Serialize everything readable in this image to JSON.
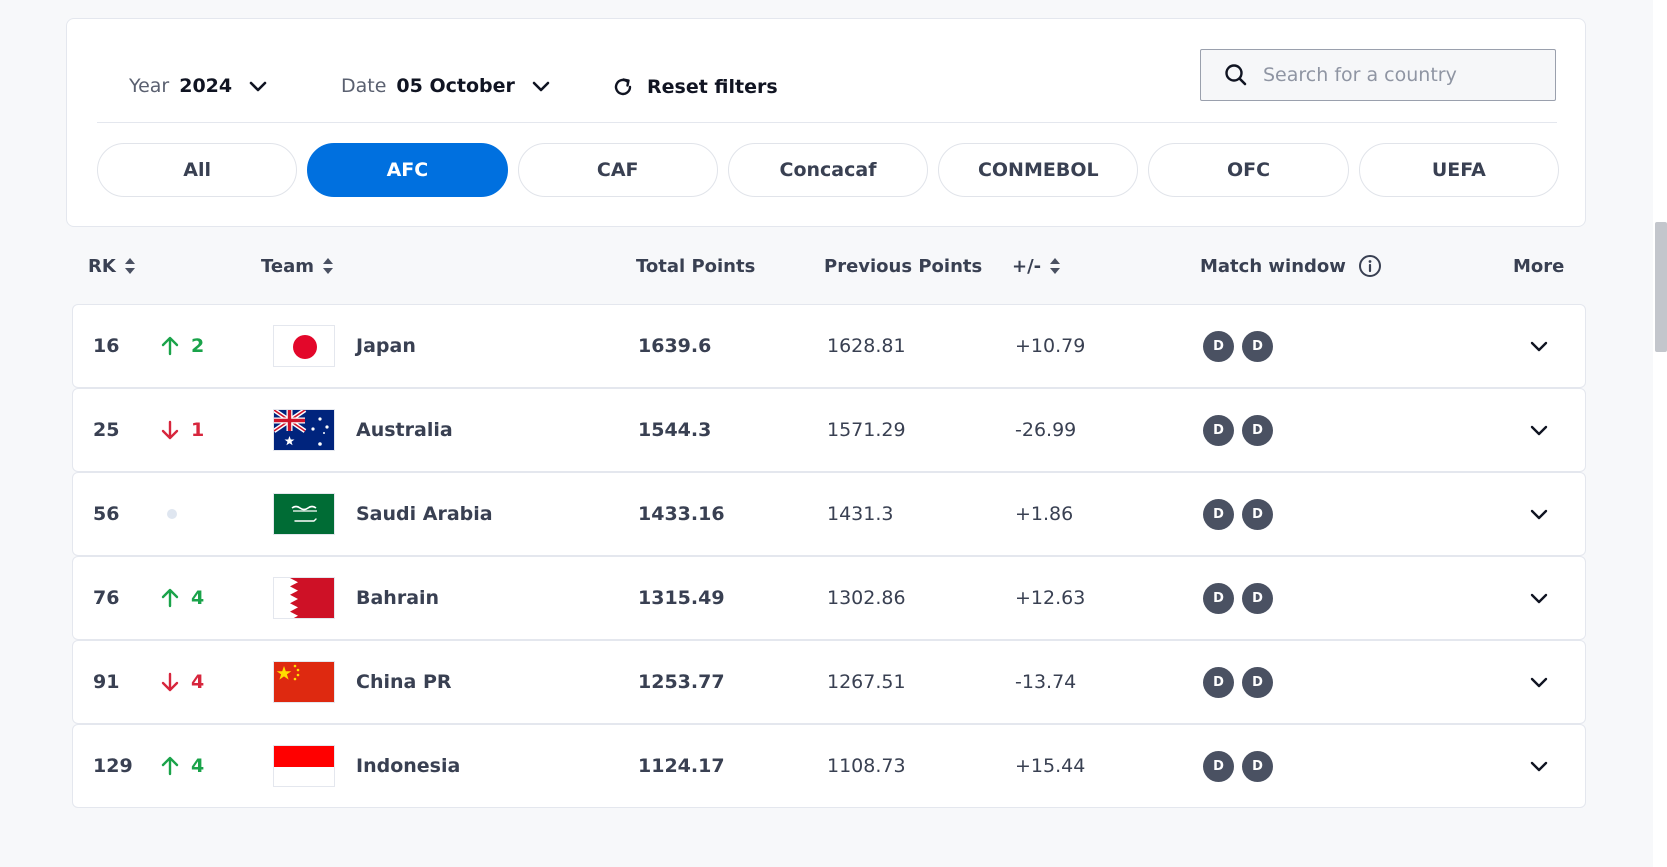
{
  "filters": {
    "year": {
      "label": "Year",
      "value": "2024"
    },
    "date": {
      "label": "Date",
      "value": "05 October"
    },
    "reset_label": "Reset filters",
    "search_placeholder": "Search for a country"
  },
  "tabs": [
    {
      "label": "All",
      "active": false
    },
    {
      "label": "AFC",
      "active": true
    },
    {
      "label": "CAF",
      "active": false
    },
    {
      "label": "Concacaf",
      "active": false
    },
    {
      "label": "CONMEBOL",
      "active": false
    },
    {
      "label": "OFC",
      "active": false
    },
    {
      "label": "UEFA",
      "active": false
    }
  ],
  "columns": {
    "rk": "RK",
    "team": "Team",
    "total_points": "Total Points",
    "previous_points": "Previous Points",
    "diff": "+/-",
    "match_window": "Match window",
    "more": "More"
  },
  "rows": [
    {
      "rank": "16",
      "movement": "up",
      "movement_value": "2",
      "flag": "japan",
      "team": "Japan",
      "total": "1639.6",
      "previous": "1628.81",
      "diff": "+10.79",
      "match_window": [
        "D",
        "D"
      ]
    },
    {
      "rank": "25",
      "movement": "down",
      "movement_value": "1",
      "flag": "australia",
      "team": "Australia",
      "total": "1544.3",
      "previous": "1571.29",
      "diff": "-26.99",
      "match_window": [
        "D",
        "D"
      ]
    },
    {
      "rank": "56",
      "movement": "none",
      "movement_value": "",
      "flag": "saudi-arabia",
      "team": "Saudi Arabia",
      "total": "1433.16",
      "previous": "1431.3",
      "diff": "+1.86",
      "match_window": [
        "D",
        "D"
      ]
    },
    {
      "rank": "76",
      "movement": "up",
      "movement_value": "4",
      "flag": "bahrain",
      "team": "Bahrain",
      "total": "1315.49",
      "previous": "1302.86",
      "diff": "+12.63",
      "match_window": [
        "D",
        "D"
      ]
    },
    {
      "rank": "91",
      "movement": "down",
      "movement_value": "4",
      "flag": "china",
      "team": "China PR",
      "total": "1253.77",
      "previous": "1267.51",
      "diff": "-13.74",
      "match_window": [
        "D",
        "D"
      ]
    },
    {
      "rank": "129",
      "movement": "up",
      "movement_value": "4",
      "flag": "indonesia",
      "team": "Indonesia",
      "total": "1124.17",
      "previous": "1108.73",
      "diff": "+15.44",
      "match_window": [
        "D",
        "D"
      ]
    }
  ],
  "colors": {
    "accent": "#0070df",
    "up": "#1aa34a",
    "down": "#d7263d",
    "badge": "#4a5162"
  }
}
